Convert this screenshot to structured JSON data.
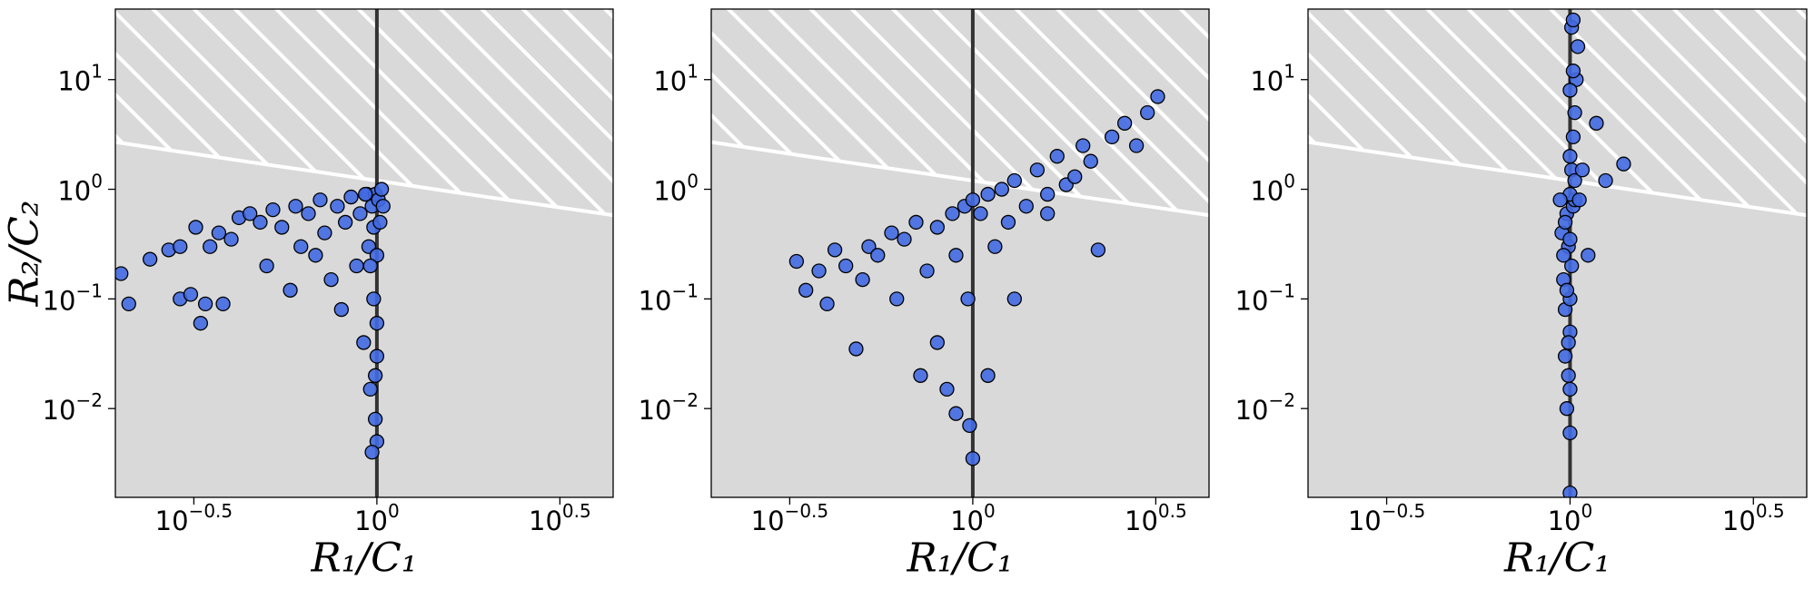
{
  "chart_data": [
    {
      "type": "scatter",
      "ylabel": "R₂/C₂",
      "xlabel": "R₁/C₁",
      "color": "#4169e1",
      "log_x": true,
      "log_y": true,
      "xlim": [
        0.193,
        4.42
      ],
      "ylim": [
        0.00155,
        44
      ],
      "xticks": [
        {
          "value": 0.3162,
          "label": "10",
          "exponent": "−0.5"
        },
        {
          "value": 1,
          "label": "10",
          "exponent": "0"
        },
        {
          "value": 3.162,
          "label": "10",
          "exponent": "0.5"
        }
      ],
      "yticks": [
        {
          "value": 0.01,
          "label": "10",
          "exponent": "−2"
        },
        {
          "value": 0.1,
          "label": "10",
          "exponent": "−1"
        },
        {
          "value": 1,
          "label": "10",
          "exponent": "0"
        },
        {
          "value": 10,
          "label": "10",
          "exponent": "1"
        }
      ],
      "vline": 1,
      "boundary": {
        "x": [
          0.193,
          0.3,
          0.5,
          0.7,
          1,
          1.5,
          2,
          3,
          4.42
        ],
        "y": [
          2.69,
          2.16,
          1.68,
          1.43,
          1.2,
          0.98,
          0.85,
          0.7,
          0.58
        ]
      },
      "x": [
        0.2,
        0.21,
        0.24,
        0.27,
        0.29,
        0.29,
        0.31,
        0.32,
        0.33,
        0.34,
        0.35,
        0.37,
        0.38,
        0.4,
        0.42,
        0.45,
        0.48,
        0.5,
        0.52,
        0.55,
        0.58,
        0.6,
        0.62,
        0.65,
        0.68,
        0.7,
        0.72,
        0.75,
        0.78,
        0.8,
        0.82,
        0.85,
        0.88,
        0.9,
        0.92,
        0.94,
        0.95,
        0.96,
        0.97,
        0.98,
        0.98,
        0.99,
        0.99,
        1.0,
        1.0,
        1.0,
        1.01,
        1.02,
        1.03,
        1.04,
        0.97,
        0.99,
        1.0,
        0.96,
        0.93
      ],
      "y": [
        0.17,
        0.09,
        0.23,
        0.28,
        0.3,
        0.1,
        0.11,
        0.45,
        0.06,
        0.09,
        0.3,
        0.4,
        0.09,
        0.35,
        0.55,
        0.6,
        0.5,
        0.2,
        0.65,
        0.45,
        0.12,
        0.7,
        0.3,
        0.6,
        0.25,
        0.8,
        0.4,
        0.15,
        0.7,
        0.08,
        0.5,
        0.85,
        0.2,
        0.6,
        0.04,
        0.9,
        0.3,
        0.015,
        0.7,
        0.1,
        0.45,
        0.02,
        0.9,
        0.005,
        0.06,
        0.25,
        0.8,
        0.5,
        1.0,
        0.7,
        0.004,
        0.008,
        0.03,
        0.2,
        0.9
      ]
    },
    {
      "type": "scatter",
      "xlabel": "R₁/C₁",
      "color": "#4169e1",
      "log_x": true,
      "log_y": true,
      "xlim": [
        0.193,
        4.42
      ],
      "ylim": [
        0.00155,
        44
      ],
      "xticks": [
        {
          "value": 0.3162,
          "label": "10",
          "exponent": "−0.5"
        },
        {
          "value": 1,
          "label": "10",
          "exponent": "0"
        },
        {
          "value": 3.162,
          "label": "10",
          "exponent": "0.5"
        }
      ],
      "yticks": [
        {
          "value": 0.01,
          "label": "10",
          "exponent": "−2"
        },
        {
          "value": 0.1,
          "label": "10",
          "exponent": "−1"
        },
        {
          "value": 1,
          "label": "10",
          "exponent": "0"
        },
        {
          "value": 10,
          "label": "10",
          "exponent": "1"
        }
      ],
      "vline": 1,
      "boundary": {
        "x": [
          0.193,
          0.3,
          0.5,
          0.7,
          1,
          1.5,
          2,
          3,
          4.42
        ],
        "y": [
          2.69,
          2.16,
          1.68,
          1.43,
          1.2,
          0.98,
          0.85,
          0.7,
          0.58
        ]
      },
      "x": [
        0.33,
        0.35,
        0.38,
        0.4,
        0.42,
        0.45,
        0.48,
        0.5,
        0.52,
        0.55,
        0.6,
        0.62,
        0.65,
        0.7,
        0.72,
        0.75,
        0.8,
        0.85,
        0.88,
        0.9,
        0.95,
        0.97,
        1.0,
        1.0,
        1.05,
        1.1,
        1.15,
        1.2,
        1.25,
        1.3,
        1.4,
        1.5,
        1.6,
        1.7,
        1.8,
        1.9,
        2.0,
        2.1,
        2.2,
        2.4,
        2.6,
        2.8,
        3.0,
        3.2,
        0.98,
        0.9,
        1.1,
        0.8,
        1.3,
        1.6
      ],
      "y": [
        0.22,
        0.12,
        0.18,
        0.09,
        0.28,
        0.2,
        0.035,
        0.15,
        0.3,
        0.25,
        0.4,
        0.1,
        0.35,
        0.5,
        0.02,
        0.18,
        0.45,
        0.015,
        0.6,
        0.25,
        0.7,
        0.1,
        0.8,
        0.0035,
        0.6,
        0.9,
        0.3,
        1.0,
        0.5,
        1.2,
        0.7,
        1.5,
        0.9,
        2.0,
        1.1,
        1.3,
        2.5,
        1.8,
        0.28,
        3.0,
        4.0,
        2.5,
        5.0,
        7.0,
        0.007,
        0.009,
        0.02,
        0.04,
        0.1,
        0.6
      ]
    },
    {
      "type": "scatter",
      "xlabel": "R₁/C₁",
      "color": "#4169e1",
      "log_x": true,
      "log_y": true,
      "xlim": [
        0.193,
        4.42
      ],
      "ylim": [
        0.00155,
        44
      ],
      "xticks": [
        {
          "value": 0.3162,
          "label": "10",
          "exponent": "−0.5"
        },
        {
          "value": 1,
          "label": "10",
          "exponent": "0"
        },
        {
          "value": 3.162,
          "label": "10",
          "exponent": "0.5"
        }
      ],
      "yticks": [
        {
          "value": 0.01,
          "label": "10",
          "exponent": "−2"
        },
        {
          "value": 0.1,
          "label": "10",
          "exponent": "−1"
        },
        {
          "value": 1,
          "label": "10",
          "exponent": "0"
        },
        {
          "value": 10,
          "label": "10",
          "exponent": "1"
        }
      ],
      "vline": 1,
      "boundary": {
        "x": [
          0.193,
          0.3,
          0.5,
          0.7,
          1,
          1.5,
          2,
          3,
          4.42
        ],
        "y": [
          2.69,
          2.16,
          1.68,
          1.43,
          1.2,
          0.98,
          0.85,
          0.7,
          0.58
        ]
      },
      "x": [
        0.95,
        0.96,
        0.97,
        0.97,
        0.98,
        0.98,
        0.99,
        0.99,
        1.0,
        1.0,
        1.0,
        1.0,
        1.01,
        1.01,
        1.02,
        1.02,
        1.03,
        1.03,
        1.04,
        1.05,
        0.96,
        0.98,
        1.0,
        1.0,
        0.99,
        1.01,
        1.02,
        0.97,
        1.0,
        1.03,
        1.06,
        1.08,
        1.12,
        1.18,
        1.25,
        1.4,
        0.94,
        1.0,
        1.0,
        1.02
      ],
      "y": [
        0.4,
        0.15,
        0.08,
        0.03,
        0.6,
        0.01,
        0.02,
        0.3,
        0.0017,
        0.006,
        0.05,
        0.1,
        0.2,
        1.5,
        0.7,
        3,
        0.8,
        5,
        10,
        20,
        0.25,
        0.12,
        0.9,
        2,
        0.04,
        30,
        35,
        0.5,
        0.015,
        1.2,
        0.8,
        1.5,
        0.25,
        4,
        1.2,
        1.7,
        0.8,
        8,
        0.35,
        12
      ]
    }
  ]
}
